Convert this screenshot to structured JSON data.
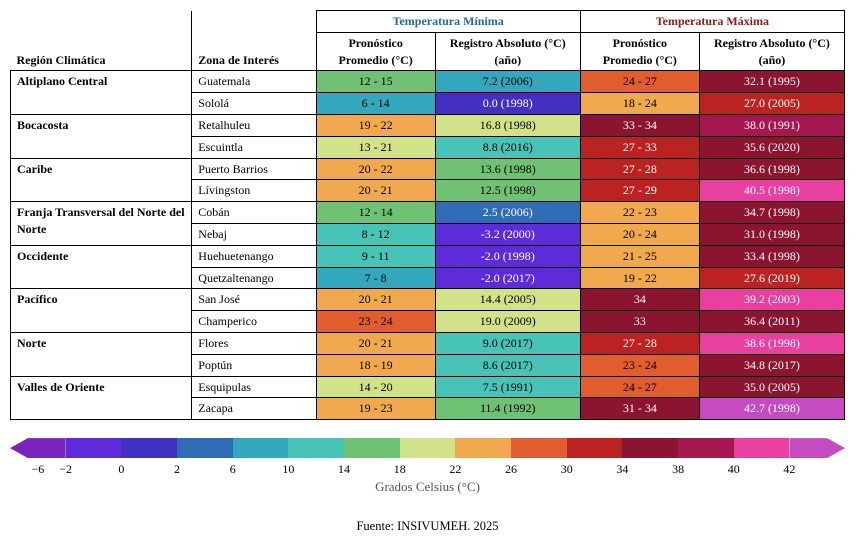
{
  "headers": {
    "region": "Región Climática",
    "zone": "Zona de Interés",
    "group_min": "Temperatura Mínima",
    "group_max": "Temperatura Máxima",
    "sub_pron": "Pronóstico Promedio (°C)",
    "sub_reg_min": "Registro Absoluto (°C) (año)",
    "sub_pron_max": "Pronóstico Promedio (°C)",
    "sub_reg_max": "Registro Absoluto (°C) (año)"
  },
  "colors": {
    "group_min": "#1e6aa8",
    "group_max": "#8b1a1a"
  },
  "legend": {
    "label": "Grados Celsius (°C)",
    "stops": [
      {
        "value": "−6",
        "color": "#7a23be"
      },
      {
        "value": "−2",
        "color": "#5e2bd8"
      },
      {
        "value": "0",
        "color": "#4230c0"
      },
      {
        "value": "2",
        "color": "#2f6cb5"
      },
      {
        "value": "6",
        "color": "#33a7bd"
      },
      {
        "value": "10",
        "color": "#48c3b8"
      },
      {
        "value": "14",
        "color": "#6fc174"
      },
      {
        "value": "18",
        "color": "#d2e288"
      },
      {
        "value": "22",
        "color": "#f0a94e"
      },
      {
        "value": "26",
        "color": "#e15d2d"
      },
      {
        "value": "30",
        "color": "#bb2323"
      },
      {
        "value": "34",
        "color": "#8b1430"
      },
      {
        "value": "38",
        "color": "#a5174f"
      },
      {
        "value": "40",
        "color": "#e83fa0"
      },
      {
        "value": "42",
        "color": "#c44bc0"
      }
    ]
  },
  "rows": [
    {
      "region": "Altiplano Central",
      "zones": [
        {
          "zone": "Guatemala",
          "min_pron": {
            "text": "12 - 15",
            "bg": "#6fc174"
          },
          "min_reg": {
            "text": "7.2 (2006)",
            "bg": "#33a7bd"
          },
          "max_pron": {
            "text": "24 - 27",
            "bg": "#e15d2d"
          },
          "max_reg": {
            "text": "32.1 (1995)",
            "bg": "#8b1430",
            "dark": true
          }
        },
        {
          "zone": "Sololá",
          "min_pron": {
            "text": "6 - 14",
            "bg": "#33a7bd"
          },
          "min_reg": {
            "text": "0.0 (1998)",
            "bg": "#4230c0",
            "dark": true
          },
          "max_pron": {
            "text": "18 - 24",
            "bg": "#f0a94e"
          },
          "max_reg": {
            "text": "27.0 (2005)",
            "bg": "#bb2323",
            "dark": true
          }
        }
      ]
    },
    {
      "region": "Bocacosta",
      "zones": [
        {
          "zone": "Retalhuleu",
          "min_pron": {
            "text": "19 - 22",
            "bg": "#f0a94e"
          },
          "min_reg": {
            "text": "16.8 (1998)",
            "bg": "#d2e288"
          },
          "max_pron": {
            "text": "33 - 34",
            "bg": "#8b1430",
            "dark": true
          },
          "max_reg": {
            "text": "38.0 (1991)",
            "bg": "#a5174f",
            "dark": true
          }
        },
        {
          "zone": "Escuintla",
          "min_pron": {
            "text": "13 - 21",
            "bg": "#d2e288"
          },
          "min_reg": {
            "text": "8.8 (2016)",
            "bg": "#48c3b8"
          },
          "max_pron": {
            "text": "27 - 33",
            "bg": "#bb2323",
            "dark": true
          },
          "max_reg": {
            "text": "35.6 (2020)",
            "bg": "#8b1430",
            "dark": true
          }
        }
      ]
    },
    {
      "region": "Caribe",
      "zones": [
        {
          "zone": "Puerto Barrios",
          "min_pron": {
            "text": "20 - 22",
            "bg": "#f0a94e"
          },
          "min_reg": {
            "text": "13.6 (1998)",
            "bg": "#6fc174"
          },
          "max_pron": {
            "text": "27 - 28",
            "bg": "#bb2323",
            "dark": true
          },
          "max_reg": {
            "text": "36.6 (1998)",
            "bg": "#8b1430",
            "dark": true
          }
        },
        {
          "zone": "Lívingston",
          "min_pron": {
            "text": "20 - 21",
            "bg": "#f0a94e"
          },
          "min_reg": {
            "text": "12.5 (1998)",
            "bg": "#6fc174"
          },
          "max_pron": {
            "text": "27 - 29",
            "bg": "#bb2323",
            "dark": true
          },
          "max_reg": {
            "text": "40.5 (1998)",
            "bg": "#e83fa0",
            "dark": true
          }
        }
      ]
    },
    {
      "region": "Franja Transversal del Norte del Norte",
      "zones": [
        {
          "zone": "Cobán",
          "min_pron": {
            "text": "12 - 14",
            "bg": "#6fc174"
          },
          "min_reg": {
            "text": "2.5 (2006)",
            "bg": "#2f6cb5",
            "dark": true
          },
          "max_pron": {
            "text": "22 - 23",
            "bg": "#f0a94e"
          },
          "max_reg": {
            "text": "34.7 (1998)",
            "bg": "#8b1430",
            "dark": true
          }
        },
        {
          "zone": "Nebaj",
          "min_pron": {
            "text": "8 - 12",
            "bg": "#48c3b8"
          },
          "min_reg": {
            "text": "-3.2 (2000)",
            "bg": "#5e2bd8",
            "dark": true
          },
          "max_pron": {
            "text": "20 - 24",
            "bg": "#f0a94e"
          },
          "max_reg": {
            "text": "31.0 (1998)",
            "bg": "#8b1430",
            "dark": true
          }
        }
      ]
    },
    {
      "region": "Occidente",
      "zones": [
        {
          "zone": "Huehuetenango",
          "min_pron": {
            "text": "9 - 11",
            "bg": "#48c3b8"
          },
          "min_reg": {
            "text": "-2.0 (1998)",
            "bg": "#5e2bd8",
            "dark": true
          },
          "max_pron": {
            "text": "21 - 25",
            "bg": "#f0a94e"
          },
          "max_reg": {
            "text": "33.4 (1998)",
            "bg": "#8b1430",
            "dark": true
          }
        },
        {
          "zone": "Quetzaltenango",
          "min_pron": {
            "text": "7 - 8",
            "bg": "#33a7bd"
          },
          "min_reg": {
            "text": "-2.0 (2017)",
            "bg": "#5e2bd8",
            "dark": true
          },
          "max_pron": {
            "text": "19 - 22",
            "bg": "#f0a94e"
          },
          "max_reg": {
            "text": "27.6 (2019)",
            "bg": "#bb2323",
            "dark": true
          }
        }
      ]
    },
    {
      "region": "Pacífico",
      "zones": [
        {
          "zone": "San José",
          "min_pron": {
            "text": "20 - 21",
            "bg": "#f0a94e"
          },
          "min_reg": {
            "text": "14.4 (2005)",
            "bg": "#d2e288"
          },
          "max_pron": {
            "text": "34",
            "bg": "#8b1430",
            "dark": true
          },
          "max_reg": {
            "text": "39.2 (2003)",
            "bg": "#e83fa0",
            "dark": true
          }
        },
        {
          "zone": "Champerico",
          "min_pron": {
            "text": "23 - 24",
            "bg": "#e15d2d"
          },
          "min_reg": {
            "text": "19.0 (2009)",
            "bg": "#d2e288"
          },
          "max_pron": {
            "text": "33",
            "bg": "#8b1430",
            "dark": true
          },
          "max_reg": {
            "text": "36.4 (2011)",
            "bg": "#8b1430",
            "dark": true
          }
        }
      ]
    },
    {
      "region": "Norte",
      "zones": [
        {
          "zone": "Flores",
          "min_pron": {
            "text": "20 - 21",
            "bg": "#f0a94e"
          },
          "min_reg": {
            "text": "9.0 (2017)",
            "bg": "#48c3b8"
          },
          "max_pron": {
            "text": "27 - 28",
            "bg": "#bb2323",
            "dark": true
          },
          "max_reg": {
            "text": "38.6 (1998)",
            "bg": "#e83fa0",
            "dark": true
          }
        },
        {
          "zone": "Poptún",
          "min_pron": {
            "text": "18 - 19",
            "bg": "#f0a94e"
          },
          "min_reg": {
            "text": "8.6 (2017)",
            "bg": "#48c3b8"
          },
          "max_pron": {
            "text": "23 - 24",
            "bg": "#e15d2d"
          },
          "max_reg": {
            "text": "34.8 (2017)",
            "bg": "#8b1430",
            "dark": true
          }
        }
      ]
    },
    {
      "region": "Valles de Oriente",
      "zones": [
        {
          "zone": "Esquipulas",
          "min_pron": {
            "text": "14 - 20",
            "bg": "#d2e288"
          },
          "min_reg": {
            "text": "7.5 (1991)",
            "bg": "#48c3b8"
          },
          "max_pron": {
            "text": "24 - 27",
            "bg": "#e15d2d"
          },
          "max_reg": {
            "text": "35.0 (2005)",
            "bg": "#8b1430",
            "dark": true
          }
        },
        {
          "zone": "Zacapa",
          "min_pron": {
            "text": "19 - 23",
            "bg": "#f0a94e"
          },
          "min_reg": {
            "text": "11.4 (1992)",
            "bg": "#6fc174"
          },
          "max_pron": {
            "text": "31 - 34",
            "bg": "#8b1430",
            "dark": true
          },
          "max_reg": {
            "text": "42.7 (1998)",
            "bg": "#c44bc0",
            "dark": true
          }
        }
      ]
    }
  ],
  "source": "Fuente: INSIVUMEH. 2025"
}
